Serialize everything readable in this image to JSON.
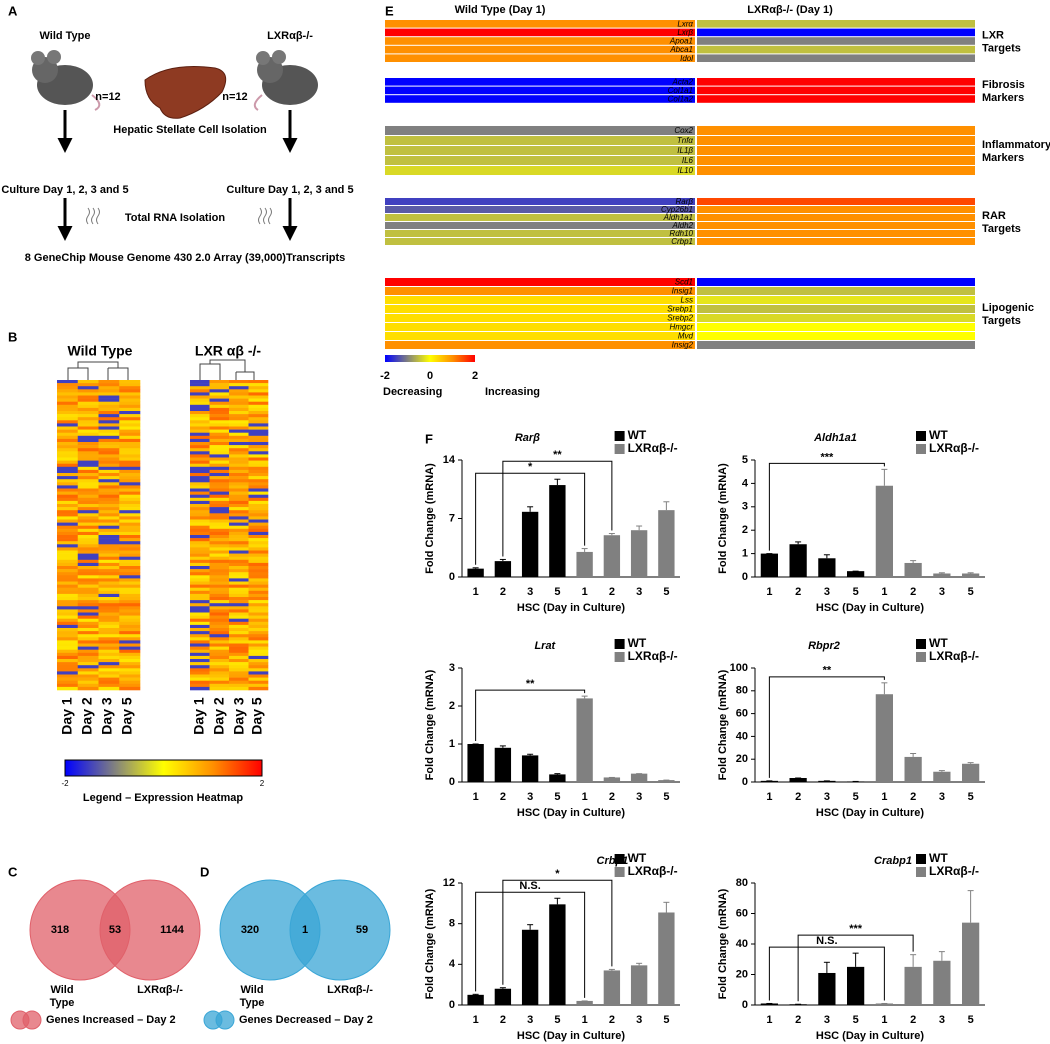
{
  "panels": {
    "a": "A",
    "b": "B",
    "c": "C",
    "d": "D",
    "e": "E",
    "f": "F"
  },
  "workflow": {
    "wild_type": "Wild Type",
    "knockout": "LXRαβ-/-",
    "n_left": "n=12",
    "n_right": "n=12",
    "isolation": "Hepatic Stellate Cell Isolation",
    "culture_left": "Culture Day 1, 2, 3 and 5",
    "culture_right": "Culture Day 1, 2, 3 and 5",
    "rna": "Total RNA Isolation",
    "array": "8 GeneChip Mouse Genome 430 2.0 Array (39,000)Transcripts"
  },
  "colorscale": [
    "#0000ff",
    "#808080",
    "#ffff00",
    "#ff9000",
    "#ff0000"
  ],
  "heatmap_b": {
    "titles": [
      "Wild Type",
      "LXR αβ -/-"
    ],
    "days": [
      "Day 1",
      "Day 2",
      "Day 3",
      "Day 5"
    ],
    "legend_ticks": [
      -2,
      2
    ],
    "legend_title": "Legend – Expression Heatmap"
  },
  "venn": [
    {
      "left": 318,
      "overlap": 53,
      "right": 1144,
      "wild_type": [
        "Wild",
        "Type"
      ],
      "knockout": "LXRαβ-/-",
      "color": "#e0606a",
      "legend": "Genes Increased – Day 2"
    },
    {
      "left": 320,
      "overlap": 1,
      "right": 59,
      "wild_type": [
        "Wild",
        "Type"
      ],
      "knockout": "LXRαβ-/-",
      "color": "#3aa6d6",
      "legend": "Genes Decreased – Day 2"
    }
  ],
  "heatmap_e": {
    "columns": [
      "Wild Type (Day 1)",
      "LXRαβ-/- (Day 1)"
    ],
    "range": [
      -2,
      2
    ],
    "legend_ticks": [
      -2,
      0,
      2
    ],
    "legend_low": "Decreasing",
    "legend_high": "Increasing",
    "groups": [
      {
        "label": [
          "LXR",
          "Targets"
        ],
        "genes": [
          "Lxrα",
          "Lxrβ",
          "Apoa1",
          "Abca1",
          "Idol"
        ],
        "wild_type": [
          1,
          2,
          1,
          1,
          1
        ],
        "knockout": [
          -0.5,
          -2,
          -1,
          -0.5,
          -1
        ]
      },
      {
        "label": [
          "Fibrosis",
          "Markers"
        ],
        "genes": [
          "Acta2",
          "Col1a1",
          "Col1a2"
        ],
        "wild_type": [
          -2,
          -2,
          -2
        ],
        "knockout": [
          2,
          2,
          2
        ]
      },
      {
        "label": [
          "Inflammatory",
          "Markers"
        ],
        "genes": [
          "Cox2",
          "Tnfα",
          "IL1β",
          "IL6",
          "IL10"
        ],
        "wild_type": [
          -1,
          -0.5,
          -0.5,
          -0.5,
          -0.3
        ],
        "knockout": [
          1,
          1,
          1,
          1,
          1
        ]
      },
      {
        "label": [
          "RAR",
          "Targets"
        ],
        "genes": [
          "Rarβ",
          "Cyp26b1",
          "Aldh1a1",
          "Aldh2",
          "Rdh10",
          "Crbp1"
        ],
        "wild_type": [
          -1.5,
          -1.3,
          -0.5,
          -1,
          -0.5,
          -0.5
        ],
        "knockout": [
          1.5,
          1,
          1,
          1,
          1,
          1
        ]
      },
      {
        "label": [
          "Lipogenic",
          "Targets"
        ],
        "genes": [
          "Scd1",
          "Insig1",
          "Lss",
          "Srebp1",
          "Srebp2",
          "Hmgcr",
          "Mvd",
          "Insig2"
        ],
        "wild_type": [
          2,
          1,
          0.3,
          0.3,
          0.3,
          0.3,
          0.3,
          1
        ],
        "knockout": [
          -2,
          -0.5,
          -0.2,
          -0.5,
          -0.3,
          0,
          0,
          -1
        ]
      }
    ]
  },
  "chart_data": [
    {
      "type": "bar",
      "title": "Rarβ",
      "ylabel": "Fold Change (mRNA)",
      "xlabel": "HSC (Day in Culture)",
      "categories": [
        "1",
        "2",
        "3",
        "5",
        "1",
        "2",
        "3",
        "5"
      ],
      "ylim": [
        0,
        14
      ],
      "yticks": [
        0,
        7,
        14
      ],
      "series": [
        {
          "name": "WT",
          "color": "#000000",
          "values": [
            1,
            1.9,
            7.8,
            11,
            null,
            null,
            null,
            null
          ],
          "errors": [
            0.1,
            0.2,
            0.6,
            0.7,
            null,
            null,
            null,
            null
          ]
        },
        {
          "name": "LXRαβ-/-",
          "color": "#808080",
          "values": [
            null,
            null,
            null,
            null,
            3,
            5,
            5.6,
            8
          ],
          "errors": [
            null,
            null,
            null,
            null,
            0.4,
            0.2,
            0.5,
            1
          ]
        }
      ],
      "annotations": [
        {
          "text": "*",
          "from": 0,
          "to": 4
        },
        {
          "text": "**",
          "from": 1,
          "to": 5
        }
      ]
    },
    {
      "type": "bar",
      "title": "Aldh1a1",
      "ylabel": "Fold Change (mRNA)",
      "xlabel": "HSC (Day in Culture)",
      "categories": [
        "1",
        "2",
        "3",
        "5",
        "1",
        "2",
        "3",
        "5"
      ],
      "ylim": [
        0,
        5
      ],
      "yticks": [
        0,
        1,
        2,
        3,
        4,
        5
      ],
      "series": [
        {
          "name": "WT",
          "color": "#000000",
          "values": [
            1,
            1.4,
            0.8,
            0.25,
            null,
            null,
            null,
            null
          ],
          "errors": [
            0,
            0.1,
            0.15,
            0,
            null,
            null,
            null,
            null
          ]
        },
        {
          "name": "LXRαβ-/-",
          "color": "#808080",
          "values": [
            null,
            null,
            null,
            null,
            3.9,
            0.6,
            0.15,
            0.15
          ],
          "errors": [
            null,
            null,
            null,
            null,
            0.7,
            0.1,
            0.03,
            0.03
          ]
        }
      ],
      "annotations": [
        {
          "text": "***",
          "from": 0,
          "to": 4
        }
      ]
    },
    {
      "type": "bar",
      "title": "Lrat",
      "ylabel": "Fold Change (mRNA)",
      "xlabel": "HSC (Day in Culture)",
      "categories": [
        "1",
        "2",
        "3",
        "5",
        "1",
        "2",
        "3",
        "5"
      ],
      "ylim": [
        0,
        3
      ],
      "yticks": [
        0,
        1,
        2,
        3
      ],
      "series": [
        {
          "name": "WT",
          "color": "#000000",
          "values": [
            1,
            0.9,
            0.7,
            0.2,
            null,
            null,
            null,
            null
          ],
          "errors": [
            0,
            0.05,
            0.03,
            0.02,
            null,
            null,
            null,
            null
          ]
        },
        {
          "name": "LXRαβ-/-",
          "color": "#808080",
          "values": [
            null,
            null,
            null,
            null,
            2.2,
            0.12,
            0.22,
            0.05
          ],
          "errors": [
            null,
            null,
            null,
            null,
            0.06,
            0,
            0,
            0
          ]
        }
      ],
      "annotations": [
        {
          "text": "**",
          "from": 0,
          "to": 4
        }
      ]
    },
    {
      "type": "bar",
      "title": "Rbpr2",
      "ylabel": "Fold Change (mRNA)",
      "xlabel": "HSC (Day in Culture)",
      "categories": [
        "1",
        "2",
        "3",
        "5",
        "1",
        "2",
        "3",
        "5"
      ],
      "ylim": [
        0,
        100
      ],
      "yticks": [
        0,
        20,
        40,
        60,
        80,
        100
      ],
      "series": [
        {
          "name": "WT",
          "color": "#000000",
          "values": [
            1,
            3.5,
            1,
            0.5,
            null,
            null,
            null,
            null
          ],
          "errors": [
            0,
            0,
            0,
            0,
            null,
            null,
            null,
            null
          ]
        },
        {
          "name": "LXRαβ-/-",
          "color": "#808080",
          "values": [
            null,
            null,
            null,
            null,
            77,
            22,
            9,
            16
          ],
          "errors": [
            null,
            null,
            null,
            null,
            10,
            3,
            1,
            1
          ]
        }
      ],
      "annotations": [
        {
          "text": "**",
          "from": 0,
          "to": 4
        }
      ]
    },
    {
      "type": "bar",
      "title": "Crbp1",
      "ylabel": "Fold Change (mRNA)",
      "xlabel": "HSC (Day in Culture)",
      "categories": [
        "1",
        "2",
        "3",
        "5",
        "1",
        "2",
        "3",
        "5"
      ],
      "ylim": [
        0,
        12
      ],
      "yticks": [
        0,
        4,
        8,
        12
      ],
      "series": [
        {
          "name": "WT",
          "color": "#000000",
          "values": [
            1,
            1.6,
            7.4,
            9.9,
            null,
            null,
            null,
            null
          ],
          "errors": [
            0.05,
            0.1,
            0.5,
            0.6,
            null,
            null,
            null,
            null
          ]
        },
        {
          "name": "LXRαβ-/-",
          "color": "#808080",
          "values": [
            null,
            null,
            null,
            null,
            0.4,
            3.4,
            3.9,
            9.1
          ],
          "errors": [
            null,
            null,
            null,
            null,
            0,
            0.1,
            0.2,
            1
          ]
        }
      ],
      "annotations": [
        {
          "text": "N.S.",
          "from": 0,
          "to": 4
        },
        {
          "text": "*",
          "from": 1,
          "to": 5
        }
      ]
    },
    {
      "type": "bar",
      "title": "Crabp1",
      "ylabel": "Fold Change (mRNA)",
      "xlabel": "HSC (Day in Culture)",
      "categories": [
        "1",
        "2",
        "3",
        "5",
        "1",
        "2",
        "3",
        "5"
      ],
      "ylim": [
        0,
        80
      ],
      "yticks": [
        0,
        20,
        40,
        60,
        80
      ],
      "series": [
        {
          "name": "WT",
          "color": "#000000",
          "values": [
            1,
            0.5,
            21,
            25,
            null,
            null,
            null,
            null
          ],
          "errors": [
            0,
            0,
            7,
            9,
            null,
            null,
            null,
            null
          ]
        },
        {
          "name": "LXRαβ-/-",
          "color": "#808080",
          "values": [
            null,
            null,
            null,
            null,
            1,
            25,
            29,
            54
          ],
          "errors": [
            null,
            null,
            null,
            null,
            0,
            8,
            6,
            21
          ]
        }
      ],
      "annotations": [
        {
          "text": "N.S.",
          "from": 0,
          "to": 4
        },
        {
          "text": "***",
          "from": 1,
          "to": 5
        }
      ]
    }
  ]
}
